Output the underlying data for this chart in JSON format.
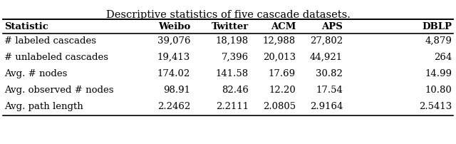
{
  "title": "Descriptive statistics of five cascade datasets.",
  "columns": [
    "Statistic",
    "Weibo",
    "Twitter",
    "ACM",
    "APS",
    "DBLP"
  ],
  "rows": [
    [
      "# labeled cascades",
      "39,076",
      "18,198",
      "12,988",
      "27,802",
      "4,879"
    ],
    [
      "# unlabeled cascades",
      "19,413",
      "7,396",
      "20,013",
      "44,921",
      "264"
    ],
    [
      "Avg. # nodes",
      "174.02",
      "141.58",
      "17.69",
      "30.82",
      "14.99"
    ],
    [
      "Avg. observed # nodes",
      "98.91",
      "82.46",
      "12.20",
      "17.54",
      "10.80"
    ],
    [
      "Avg. path length",
      "2.2462",
      "2.2111",
      "2.0805",
      "2.9164",
      "2.5413"
    ]
  ],
  "col_aligns": [
    "left",
    "right",
    "right",
    "right",
    "right",
    "right"
  ],
  "title_fontsize": 10.5,
  "table_fontsize": 9.5,
  "background_color": "#ffffff",
  "line_color": "#000000"
}
